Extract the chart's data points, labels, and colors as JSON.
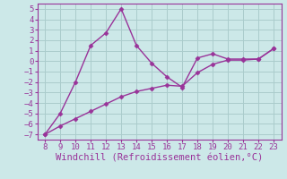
{
  "line1_x": [
    8,
    9,
    10,
    11,
    12,
    13,
    14,
    15,
    16,
    17,
    18,
    19,
    20,
    21,
    22,
    23
  ],
  "line1_y": [
    -7,
    -5,
    -2,
    1.5,
    2.7,
    5,
    1.5,
    -0.2,
    -1.5,
    -2.5,
    0.3,
    0.7,
    0.2,
    0.2,
    0.2,
    1.2
  ],
  "line2_x": [
    8,
    9,
    10,
    11,
    12,
    13,
    14,
    15,
    16,
    17,
    18,
    19,
    20,
    21,
    22,
    23
  ],
  "line2_y": [
    -7,
    -6.2,
    -5.5,
    -4.8,
    -4.1,
    -3.4,
    -2.9,
    -2.6,
    -2.3,
    -2.4,
    -1.1,
    -0.3,
    0.1,
    0.1,
    0.2,
    1.2
  ],
  "color": "#993399",
  "bg_color": "#cce8e8",
  "grid_color": "#aacccc",
  "xlabel": "Windchill (Refroidissement éolien,°C)",
  "xlim": [
    7.5,
    23.5
  ],
  "ylim": [
    -7.5,
    5.5
  ],
  "xticks": [
    8,
    9,
    10,
    11,
    12,
    13,
    14,
    15,
    16,
    17,
    18,
    19,
    20,
    21,
    22,
    23
  ],
  "yticks": [
    -7,
    -6,
    -5,
    -4,
    -3,
    -2,
    -1,
    0,
    1,
    2,
    3,
    4,
    5
  ],
  "marker": "D",
  "markersize": 2.5,
  "linewidth": 1.0,
  "xlabel_fontsize": 7.5,
  "tick_fontsize": 6.5,
  "xlabel_color": "#993399",
  "tick_color": "#993399",
  "spine_color": "#993399"
}
